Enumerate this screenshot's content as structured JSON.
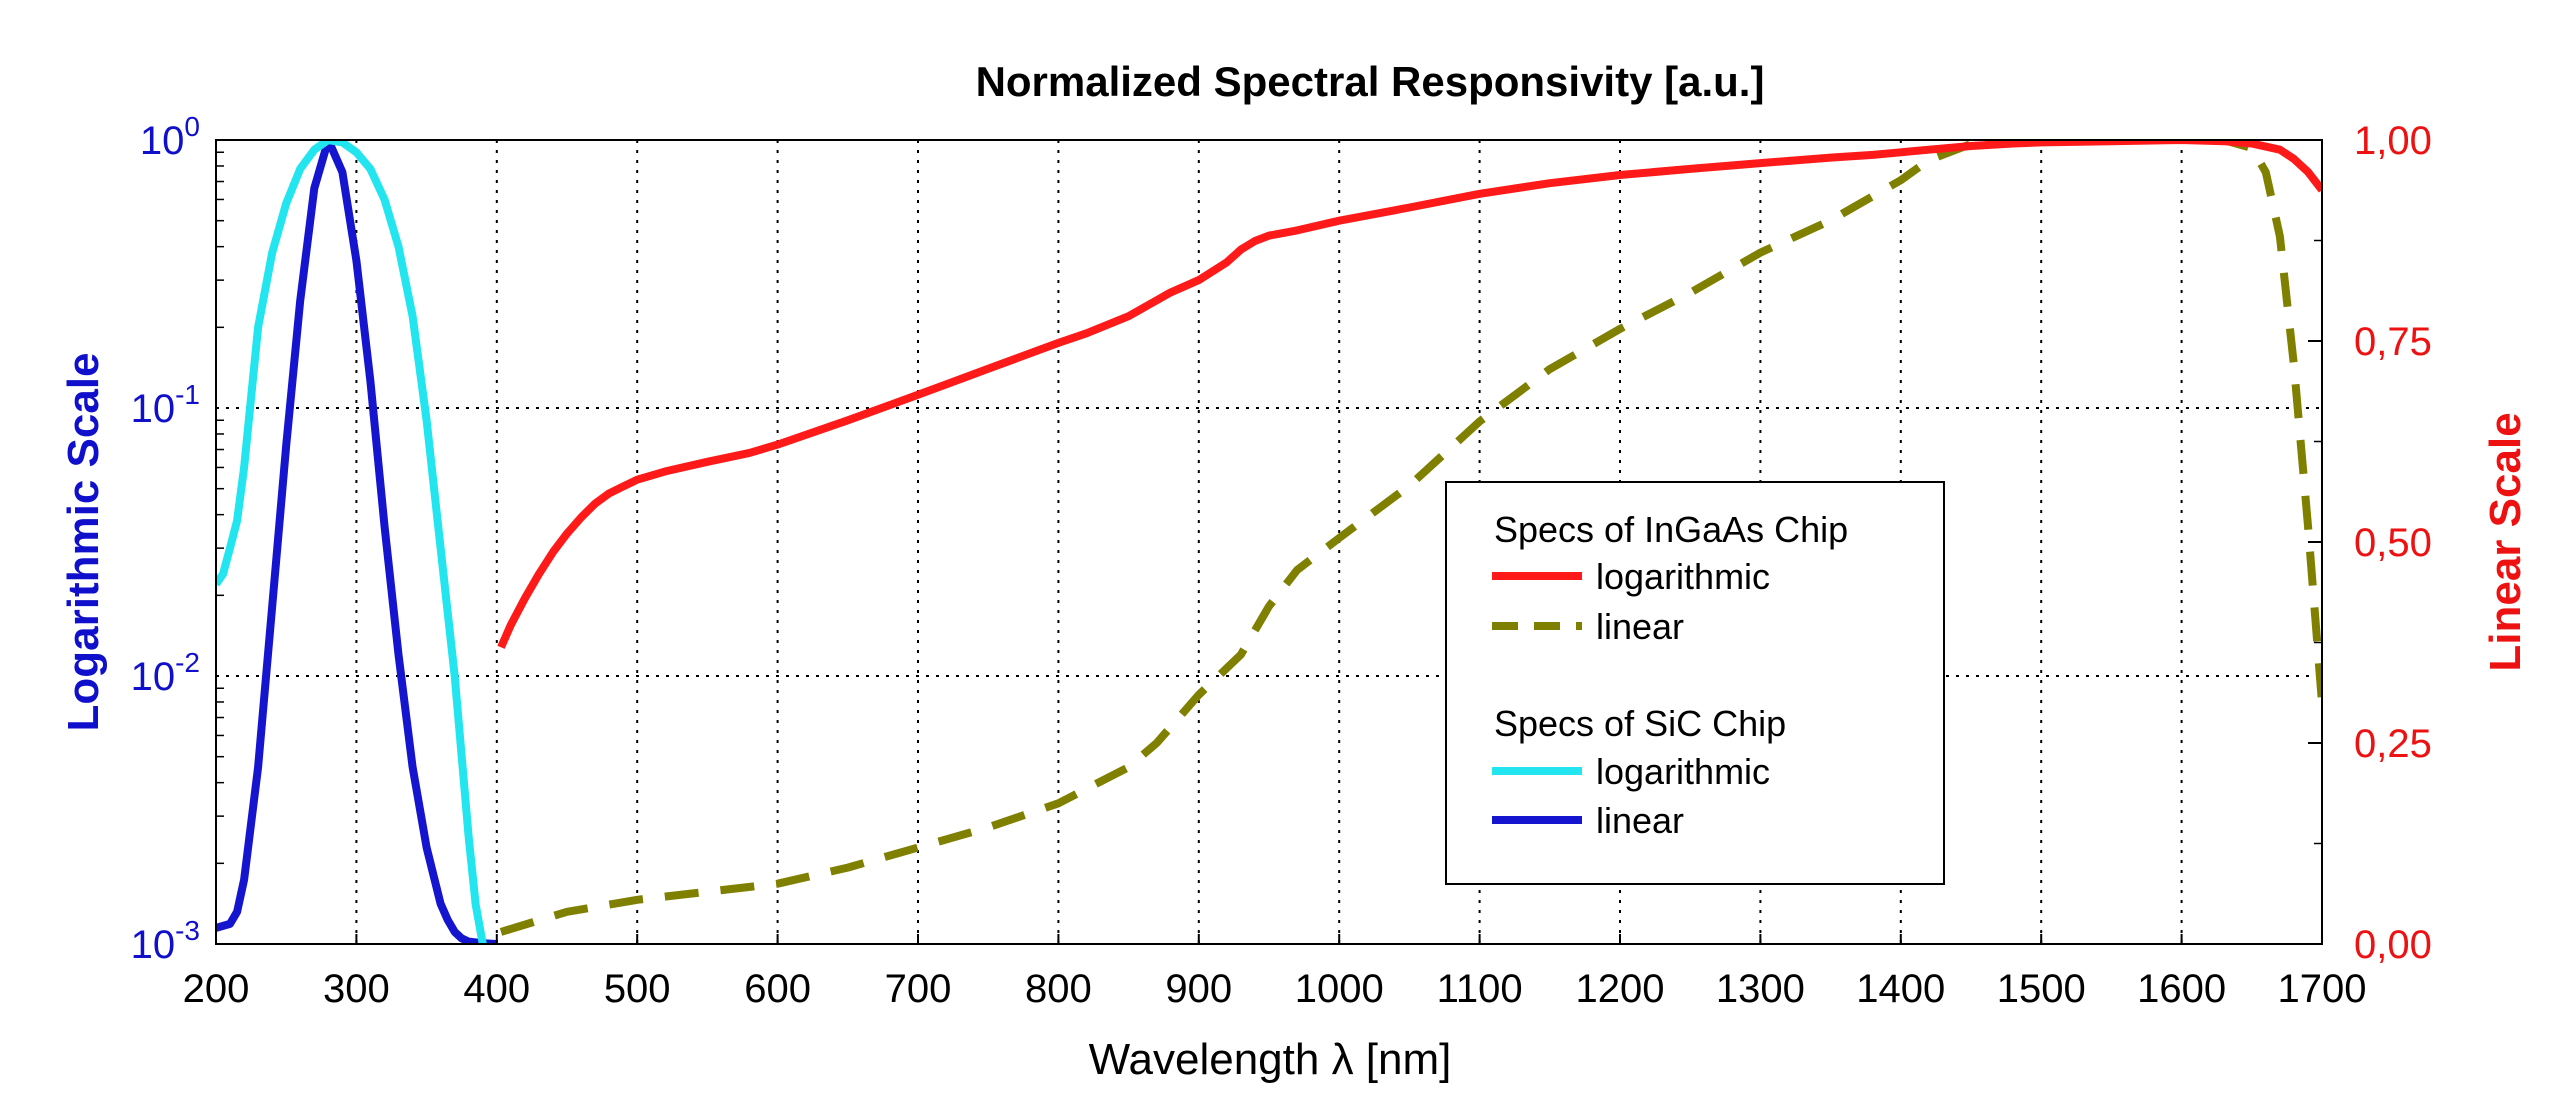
{
  "chart_data": {
    "type": "line",
    "title": "Normalized Spectral Responsivity [a.u.]",
    "xlabel": "Wavelength λ [nm]",
    "ylabel_left": "Logarithmic Scale",
    "ylabel_right": "Linear Scale",
    "xlim": [
      200,
      1700
    ],
    "x_ticks": [
      "200",
      "300",
      "400",
      "500",
      "600",
      "700",
      "800",
      "900",
      "1000",
      "1100",
      "1200",
      "1300",
      "1400",
      "1500",
      "1600",
      "1700"
    ],
    "ylim_left_log": [
      0.001,
      1
    ],
    "y_ticks_left": [
      {
        "base": "10",
        "exp": "0",
        "value": 1
      },
      {
        "base": "10",
        "exp": "-1",
        "value": 0.1
      },
      {
        "base": "10",
        "exp": "-2",
        "value": 0.01
      },
      {
        "base": "10",
        "exp": "-3",
        "value": 0.001
      }
    ],
    "ylim_right": [
      0,
      1
    ],
    "y_ticks_right": [
      {
        "label": "1,00",
        "value": 1.0
      },
      {
        "label": "0,75",
        "value": 0.75
      },
      {
        "label": "0,50",
        "value": 0.5
      },
      {
        "label": "0,25",
        "value": 0.25
      },
      {
        "label": "0,00",
        "value": 0.0
      }
    ],
    "grid": true,
    "legend_position": "center-right",
    "legend_groups": [
      {
        "title": "Specs of InGaAs Chip",
        "entries": [
          "logarithmic",
          "linear"
        ]
      },
      {
        "title": "Specs of SiC Chip",
        "entries": [
          "logarithmic",
          "linear"
        ]
      }
    ],
    "colors": {
      "left_axis": "#1010cc",
      "right_axis": "#ee1111",
      "ingaas_log": "#ff1a1a",
      "ingaas_lin": "#808000",
      "sic_log": "#22e5f0",
      "sic_lin": "#1515d0"
    },
    "series": [
      {
        "name": "logarithmic",
        "group": "Specs of InGaAs Chip",
        "axis": "left",
        "style": "solid",
        "color": "#ff1a1a",
        "x": [
          403,
          410,
          420,
          430,
          440,
          450,
          460,
          470,
          480,
          490,
          500,
          520,
          550,
          580,
          600,
          650,
          700,
          750,
          800,
          820,
          850,
          880,
          900,
          920,
          930,
          940,
          950,
          970,
          1000,
          1050,
          1100,
          1150,
          1200,
          1250,
          1300,
          1350,
          1380,
          1400,
          1420,
          1450,
          1480,
          1500,
          1550,
          1600,
          1630,
          1650,
          1670,
          1680,
          1690,
          1700
        ],
        "y": [
          0.0128,
          0.0155,
          0.0195,
          0.024,
          0.029,
          0.034,
          0.039,
          0.044,
          0.048,
          0.051,
          0.054,
          0.058,
          0.063,
          0.068,
          0.073,
          0.09,
          0.112,
          0.14,
          0.175,
          0.19,
          0.22,
          0.27,
          0.3,
          0.35,
          0.39,
          0.42,
          0.44,
          0.46,
          0.5,
          0.56,
          0.63,
          0.69,
          0.74,
          0.78,
          0.82,
          0.86,
          0.88,
          0.9,
          0.92,
          0.95,
          0.97,
          0.98,
          0.99,
          1.0,
          0.99,
          0.97,
          0.92,
          0.85,
          0.76,
          0.65
        ]
      },
      {
        "name": "linear",
        "group": "Specs of InGaAs Chip",
        "axis": "right",
        "style": "dashed",
        "color": "#808000",
        "x": [
          403,
          450,
          500,
          550,
          600,
          650,
          700,
          750,
          800,
          850,
          870,
          900,
          930,
          950,
          970,
          1000,
          1050,
          1100,
          1150,
          1200,
          1250,
          1300,
          1350,
          1400,
          1420,
          1450,
          1470,
          1480,
          1500,
          1550,
          1600,
          1630,
          1650,
          1660,
          1670,
          1680,
          1690,
          1700
        ],
        "y": [
          0.015,
          0.04,
          0.055,
          0.065,
          0.075,
          0.095,
          0.12,
          0.145,
          0.175,
          0.22,
          0.25,
          0.31,
          0.36,
          0.42,
          0.465,
          0.505,
          0.57,
          0.65,
          0.715,
          0.765,
          0.81,
          0.86,
          0.9,
          0.95,
          0.975,
          0.995,
          1.0,
          1.0,
          1.0,
          1.0,
          1.0,
          1.0,
          0.99,
          0.96,
          0.88,
          0.72,
          0.52,
          0.3
        ]
      },
      {
        "name": "logarithmic",
        "group": "Specs of SiC Chip",
        "axis": "left",
        "style": "solid",
        "color": "#22e5f0",
        "x": [
          200,
          205,
          210,
          215,
          220,
          230,
          240,
          250,
          260,
          270,
          280,
          290,
          300,
          310,
          320,
          330,
          340,
          350,
          360,
          370,
          375,
          380,
          385,
          390
        ],
        "y": [
          0.022,
          0.024,
          0.03,
          0.038,
          0.06,
          0.2,
          0.38,
          0.58,
          0.78,
          0.92,
          1.0,
          0.98,
          0.9,
          0.78,
          0.6,
          0.4,
          0.22,
          0.09,
          0.03,
          0.01,
          0.005,
          0.0025,
          0.0014,
          0.001
        ]
      },
      {
        "name": "linear",
        "group": "Specs of SiC Chip",
        "axis": "right",
        "style": "solid",
        "color": "#1515d0",
        "x": [
          200,
          210,
          215,
          220,
          230,
          240,
          250,
          260,
          270,
          280,
          290,
          300,
          310,
          320,
          330,
          340,
          350,
          360,
          365,
          370,
          375,
          380,
          390,
          400
        ],
        "y": [
          0.02,
          0.025,
          0.04,
          0.08,
          0.22,
          0.42,
          0.62,
          0.8,
          0.94,
          1.0,
          0.96,
          0.85,
          0.7,
          0.52,
          0.36,
          0.22,
          0.12,
          0.05,
          0.03,
          0.015,
          0.007,
          0.003,
          0.001,
          0.0
        ]
      }
    ]
  }
}
